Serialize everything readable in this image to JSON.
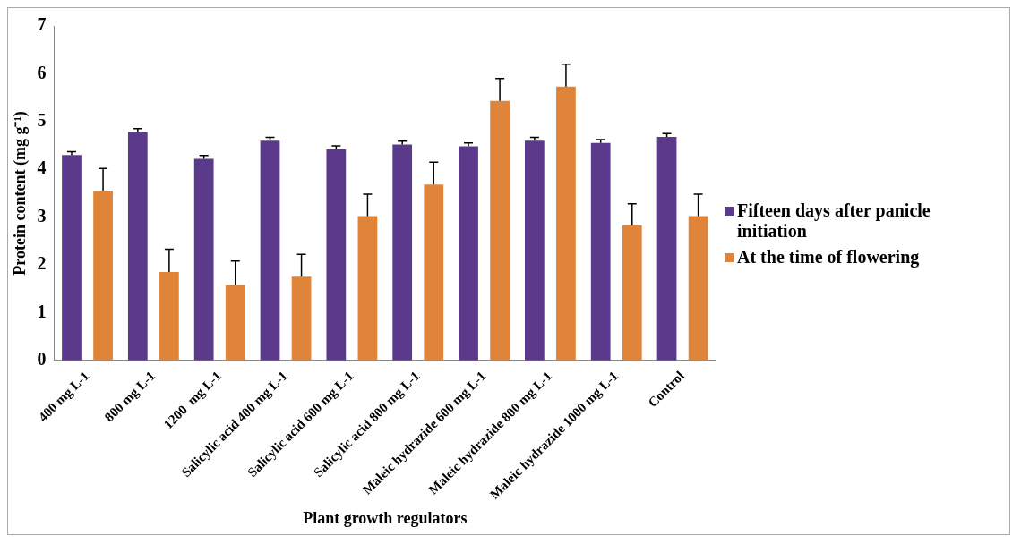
{
  "chart_data": {
    "type": "bar",
    "xlabel": "Plant growth regulators",
    "ylabel": "Protein content (mg g⁻¹)",
    "categories": [
      "400 mg L-1",
      "800 mg L-1",
      "1200  mg L-1",
      "Salicylic acid 400 mg L-1",
      "Salicylic acid 600 mg L-1",
      "Salicylic acid 800 mg L-1",
      "Maleic hydrazide 600 mg L-1",
      "Maleic hydrazide 800 mg L-1",
      "Maleic hydrazide 1000 mg L-1",
      "Control"
    ],
    "series": [
      {
        "name": "Fifteen days after panicle initiation",
        "color": "#5b3a8c",
        "values": [
          4.3,
          4.78,
          4.22,
          4.6,
          4.42,
          4.52,
          4.48,
          4.6,
          4.55,
          4.68
        ],
        "errors": [
          [
            4.3,
            4.37
          ],
          [
            4.78,
            4.85
          ],
          [
            4.22,
            4.29
          ],
          [
            4.6,
            4.67
          ],
          [
            4.42,
            4.49
          ],
          [
            4.52,
            4.59
          ],
          [
            4.48,
            4.55
          ],
          [
            4.6,
            4.67
          ],
          [
            4.55,
            4.62
          ],
          [
            4.68,
            4.75
          ]
        ]
      },
      {
        "name": "At the time of flowering",
        "color": "#e0843a",
        "values": [
          3.55,
          1.85,
          1.58,
          1.75,
          3.02,
          3.68,
          5.43,
          5.73,
          2.83,
          3.02
        ],
        "errors": [
          [
            3.55,
            4.02
          ],
          [
            1.85,
            2.33
          ],
          [
            1.58,
            2.08
          ],
          [
            1.75,
            2.22
          ],
          [
            3.02,
            3.48
          ],
          [
            3.68,
            4.15
          ],
          [
            5.43,
            5.9
          ],
          [
            5.73,
            6.2
          ],
          [
            2.83,
            3.28
          ],
          [
            3.02,
            3.48
          ]
        ]
      }
    ],
    "ylim": [
      0,
      7
    ],
    "yticks": [
      0,
      1,
      2,
      3,
      4,
      5,
      6,
      7
    ],
    "grid": false,
    "legend": "right"
  }
}
